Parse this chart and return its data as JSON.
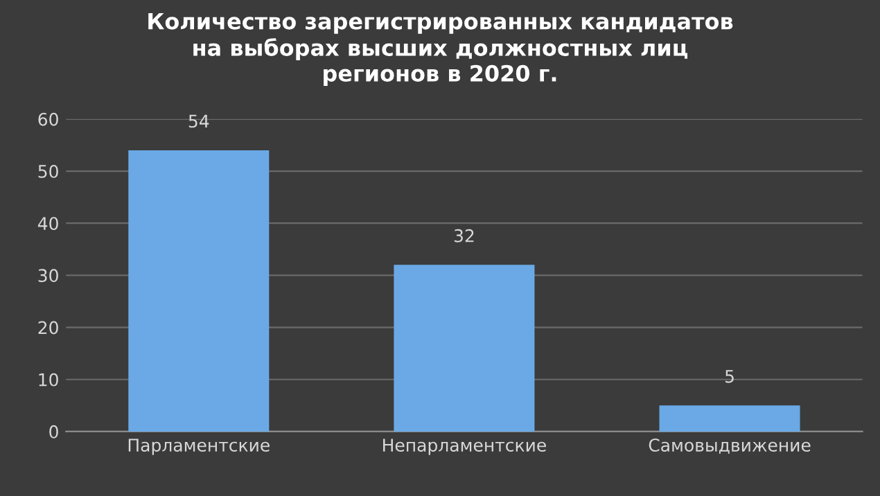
{
  "chart_data": {
    "type": "bar",
    "title": "Количество зарегистрированных кандидатов\nна выборах высших должностных лиц\nрегионов в 2020 г.",
    "categories": [
      "Парламентские",
      "Непарламентские",
      "Самовыдвижение"
    ],
    "values": [
      54,
      32,
      5
    ],
    "color": "#6aa9e6",
    "ylim": [
      0,
      60
    ],
    "yticks": [
      0,
      10,
      20,
      30,
      40,
      50,
      60
    ],
    "grid": "y",
    "data_labels": true
  }
}
